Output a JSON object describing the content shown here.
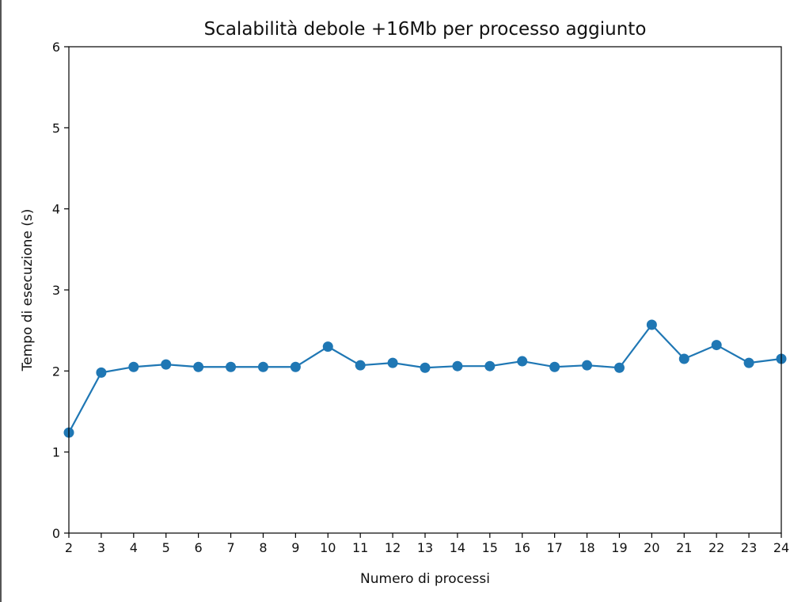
{
  "chart_data": {
    "type": "line",
    "title": "Scalabilità debole +16Mb per processo aggiunto",
    "xlabel": "Numero di processi",
    "ylabel": "Tempo di esecuzione (s)",
    "x": [
      2,
      3,
      4,
      5,
      6,
      7,
      8,
      9,
      10,
      11,
      12,
      13,
      14,
      15,
      16,
      17,
      18,
      19,
      20,
      21,
      22,
      23,
      24
    ],
    "series": [
      {
        "values": [
          1.24,
          1.98,
          2.05,
          2.08,
          2.05,
          2.05,
          2.05,
          2.05,
          2.3,
          2.07,
          2.1,
          2.04,
          2.06,
          2.06,
          2.12,
          2.05,
          2.07,
          2.04,
          2.57,
          2.15,
          2.32,
          2.1,
          2.15
        ],
        "color": "#1f77b4"
      }
    ],
    "xlim": [
      2,
      24
    ],
    "ylim": [
      0,
      6
    ],
    "xticks": [
      2,
      3,
      4,
      5,
      6,
      7,
      8,
      9,
      10,
      11,
      12,
      13,
      14,
      15,
      16,
      17,
      18,
      19,
      20,
      21,
      22,
      23,
      24
    ],
    "yticks": [
      0,
      1,
      2,
      3,
      4,
      5,
      6
    ],
    "grid": false,
    "marker": "circle"
  }
}
